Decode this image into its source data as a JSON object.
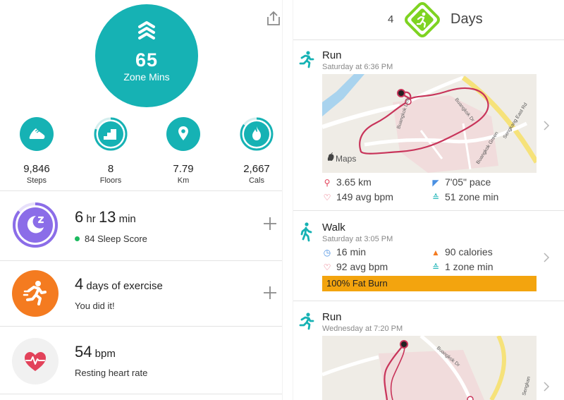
{
  "left": {
    "zone": {
      "value": "65",
      "label": "Zone Mins"
    },
    "stats": [
      {
        "icon": "shoe-icon",
        "value": "9,846",
        "label": "Steps",
        "progress": 1.0
      },
      {
        "icon": "stairs-icon",
        "value": "8",
        "label": "Floors",
        "progress": 0.8
      },
      {
        "icon": "location-pin-icon",
        "value": "7.79",
        "label": "Km",
        "progress": 1.0
      },
      {
        "icon": "flame-icon",
        "value": "2,667",
        "label": "Cals",
        "progress": 0.85
      }
    ],
    "sleep": {
      "hours": "6",
      "hr_unit": "hr",
      "minutes": "13",
      "min_unit": "min",
      "score": "84 Sleep Score",
      "progress": 0.86
    },
    "exercise": {
      "count": "4",
      "label": "days of exercise",
      "sub": "You did it!"
    },
    "heart": {
      "value": "54",
      "unit": "bpm",
      "sub": "Resting heart rate"
    }
  },
  "right": {
    "goal": {
      "count": "4",
      "label": "Days"
    },
    "activities": [
      {
        "type": "Run",
        "time": "Saturday at 6:36 PM",
        "map_logo": "Maps",
        "roads": [
          "Buangkok Link",
          "Buangkok Dr",
          "Sengkang East Rd",
          "Buangkok Green"
        ],
        "distance": "3.65 km",
        "pace": "7'05\" pace",
        "avg_bpm": "149 avg bpm",
        "zone_min": "51 zone min"
      },
      {
        "type": "Walk",
        "time": "Saturday at 3:05 PM",
        "duration": "16 min",
        "calories": "90 calories",
        "avg_bpm": "92 avg bpm",
        "zone_min": "1 zone min",
        "fat_burn": "100% Fat Burn"
      },
      {
        "type": "Run",
        "time": "Wednesday at 7:20 PM",
        "roads": [
          "Buangkok Dr",
          "Sengkan"
        ]
      }
    ]
  },
  "colors": {
    "teal": "#16b2b4",
    "purple": "#8b6de8",
    "orange": "#f47b20",
    "route": "#c8345a",
    "green_goal": "#7ed321",
    "fat_burn": "#f3a40e"
  }
}
